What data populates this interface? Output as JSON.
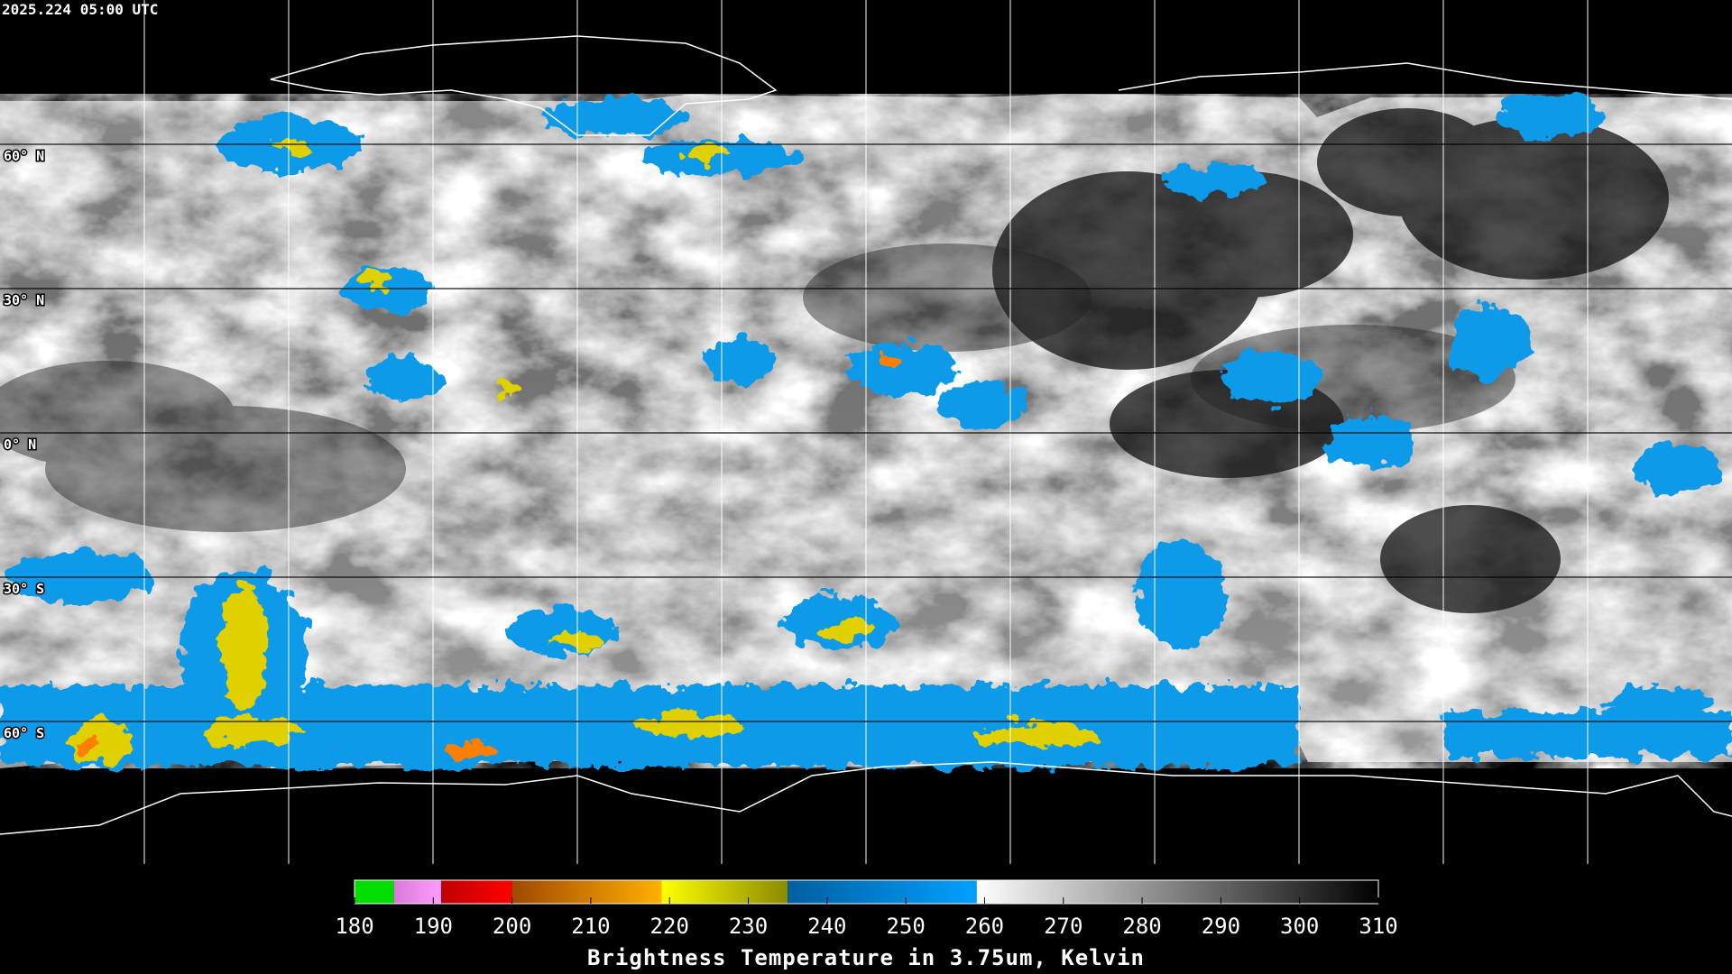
{
  "header": {
    "timestamp": "2025.224 05:00 UTC"
  },
  "map": {
    "latitude_labels": [
      "60° N",
      "30° N",
      "0° N",
      "30° S",
      "60° S"
    ]
  },
  "colorbar": {
    "title": "Brightness Temperature in 3.75um, Kelvin",
    "range": [
      180,
      310
    ],
    "ticks": [
      180,
      190,
      200,
      210,
      220,
      230,
      240,
      250,
      260,
      270,
      280,
      290,
      300,
      310
    ],
    "segments": [
      {
        "from": 180,
        "to": 185,
        "colors": [
          "#00dd00",
          "#00dd00"
        ]
      },
      {
        "from": 185,
        "to": 191,
        "colors": [
          "#d87ad8",
          "#ff9cff"
        ]
      },
      {
        "from": 191,
        "to": 200,
        "colors": [
          "#c00000",
          "#ff0000"
        ]
      },
      {
        "from": 200,
        "to": 219,
        "colors": [
          "#a04800",
          "#ffb000"
        ]
      },
      {
        "from": 219,
        "to": 235,
        "colors": [
          "#ffff00",
          "#8a8a00"
        ]
      },
      {
        "from": 235,
        "to": 259,
        "colors": [
          "#005fa0",
          "#00a0ff"
        ]
      },
      {
        "from": 259,
        "to": 310,
        "colors": [
          "#ffffff",
          "#000000"
        ]
      }
    ]
  }
}
